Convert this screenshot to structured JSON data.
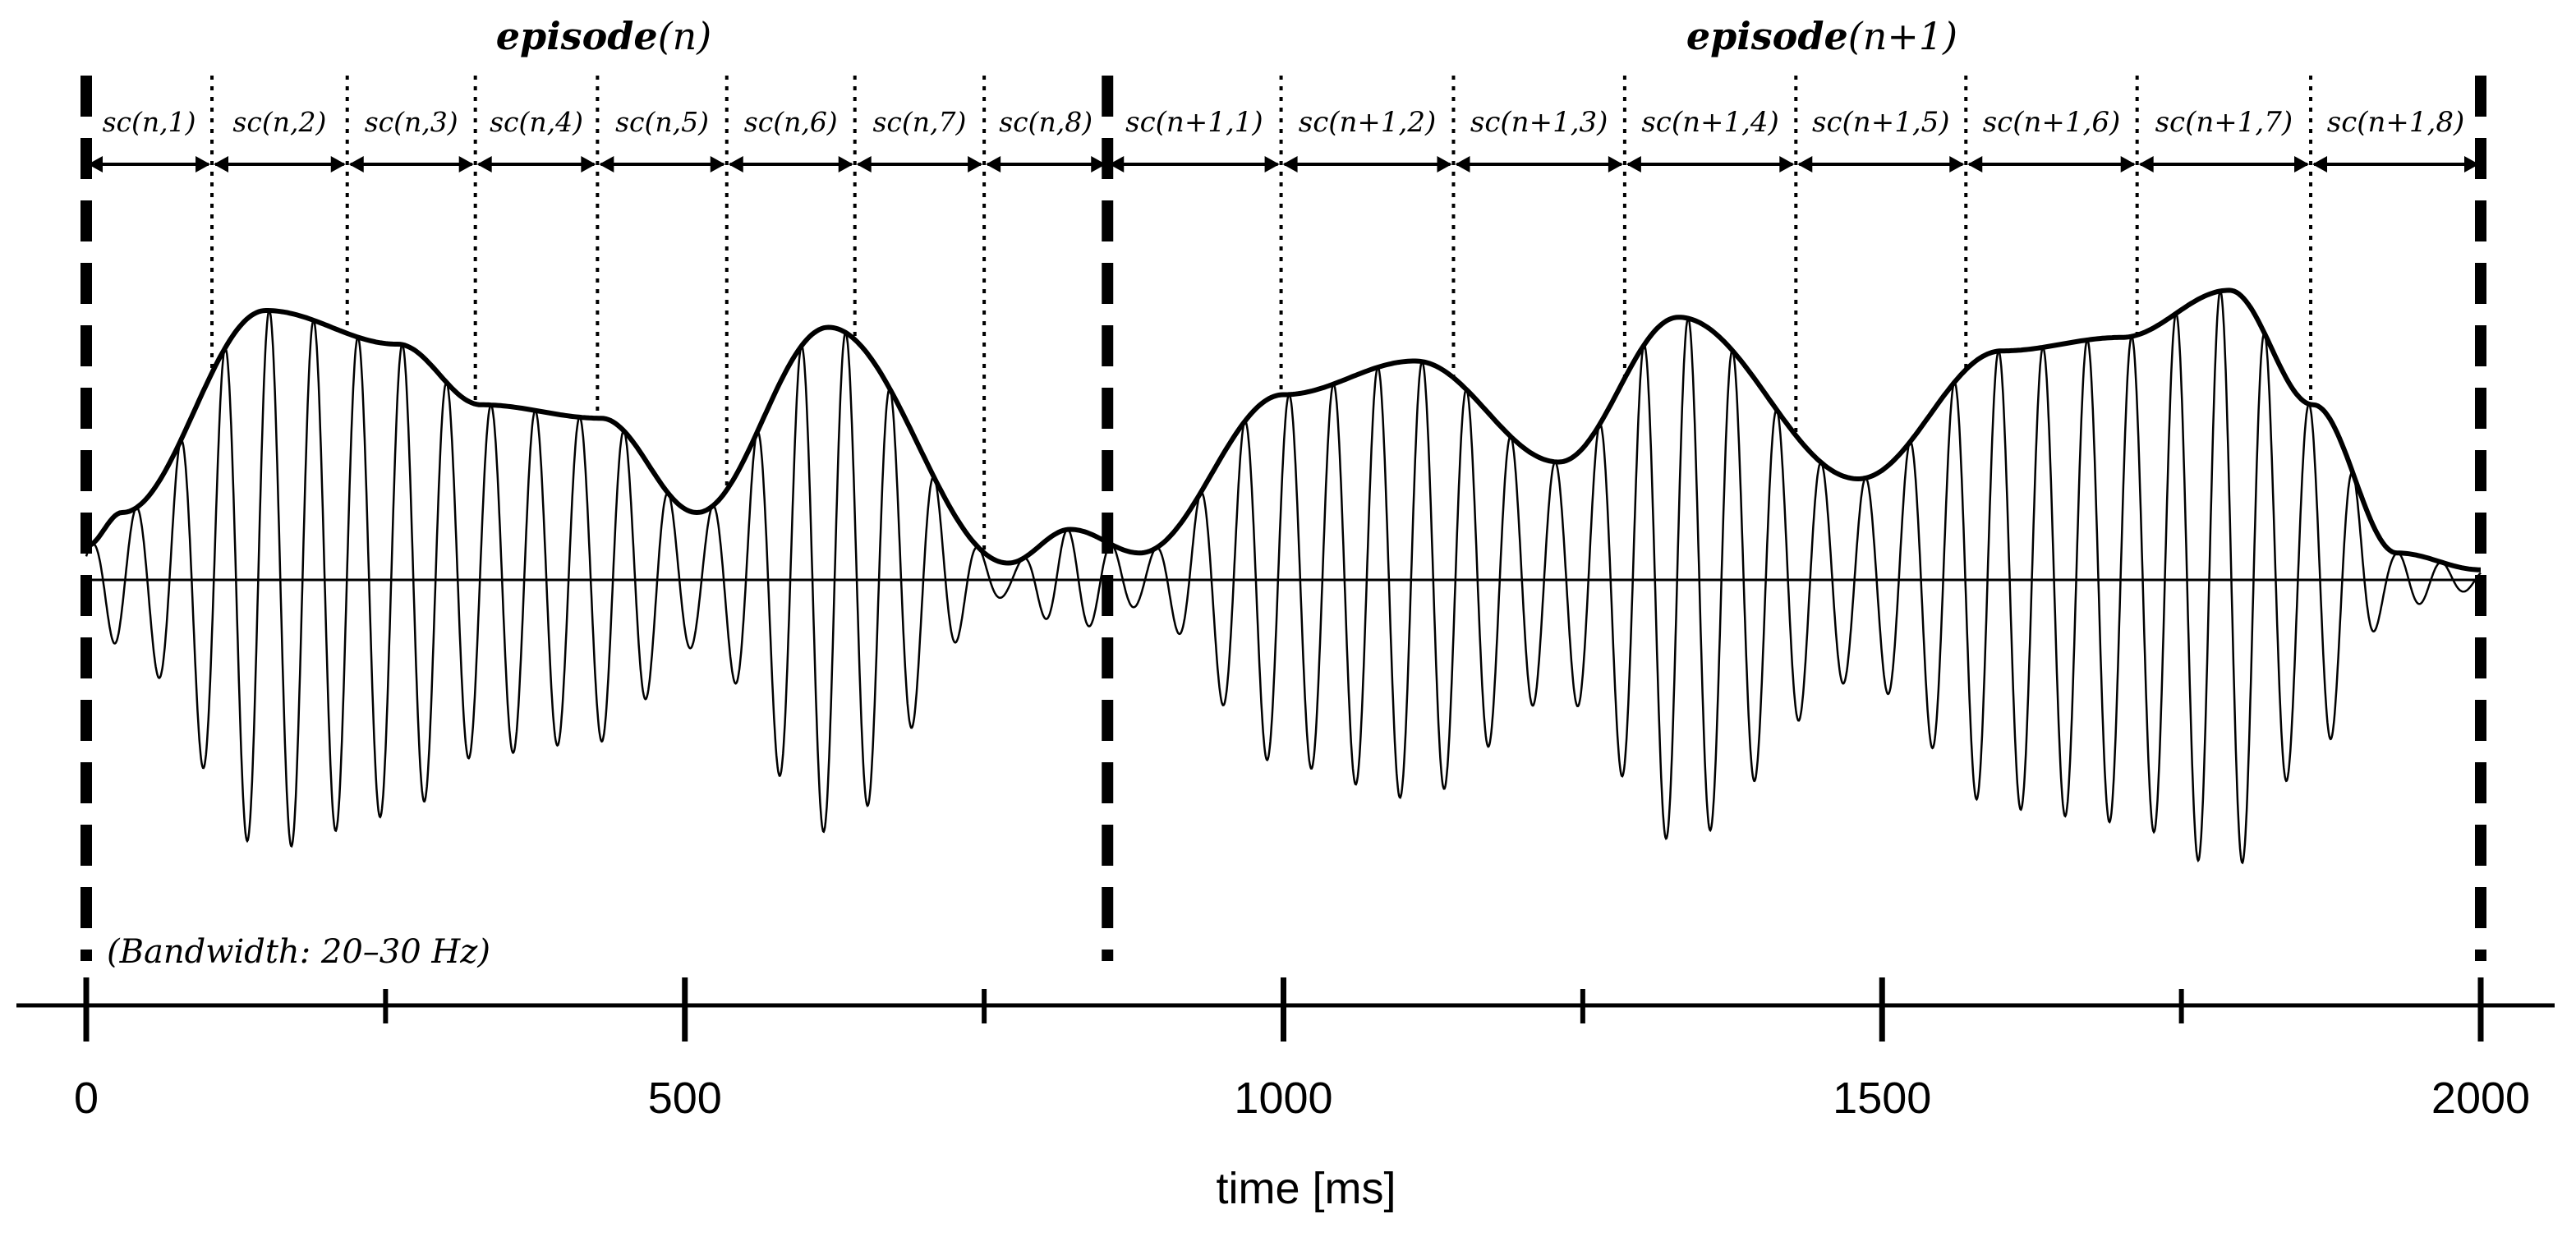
{
  "episodes": [
    {
      "bold": "episode",
      "rest": "(n)"
    },
    {
      "bold": "episode",
      "rest": "(n+1)"
    }
  ],
  "subcycles": [
    {
      "label": "sc(n,1)",
      "start": 0,
      "end": 105
    },
    {
      "label": "sc(n,2)",
      "start": 105,
      "end": 218
    },
    {
      "label": "sc(n,3)",
      "start": 218,
      "end": 325
    },
    {
      "label": "sc(n,4)",
      "start": 325,
      "end": 427
    },
    {
      "label": "sc(n,5)",
      "start": 427,
      "end": 535
    },
    {
      "label": "sc(n,6)",
      "start": 535,
      "end": 642
    },
    {
      "label": "sc(n,7)",
      "start": 642,
      "end": 750
    },
    {
      "label": "sc(n,8)",
      "start": 750,
      "end": 853
    },
    {
      "label": "sc(n+1,1)",
      "start": 853,
      "end": 998
    },
    {
      "label": "sc(n+1,2)",
      "start": 998,
      "end": 1142
    },
    {
      "label": "sc(n+1,3)",
      "start": 1142,
      "end": 1285
    },
    {
      "label": "sc(n+1,4)",
      "start": 1285,
      "end": 1428
    },
    {
      "label": "sc(n+1,5)",
      "start": 1428,
      "end": 1570
    },
    {
      "label": "sc(n+1,6)",
      "start": 1570,
      "end": 1713
    },
    {
      "label": "sc(n+1,7)",
      "start": 1713,
      "end": 1858
    },
    {
      "label": "sc(n+1,8)",
      "start": 1858,
      "end": 2000
    }
  ],
  "episode_boundaries_ms": [
    0,
    853,
    2000
  ],
  "bandwidth_label": "(Bandwidth: 20–30 Hz)",
  "axis": {
    "xlabel": "time [ms]",
    "tick_labels": [
      "0",
      "500",
      "1000",
      "1500",
      "2000"
    ],
    "major_ticks_ms": [
      0,
      500,
      1000,
      1500,
      2000
    ],
    "minor_ticks_ms": [
      250,
      750,
      1250,
      1750
    ],
    "range_ms": [
      0,
      2000
    ]
  },
  "envelope_ms": [
    0,
    30,
    150,
    260,
    330,
    430,
    510,
    620,
    770,
    822,
    880,
    1000,
    1110,
    1230,
    1330,
    1480,
    1600,
    1700,
    1790,
    1860,
    1930,
    2000
  ],
  "envelope_amp": [
    0.1,
    0.2,
    0.8,
    0.7,
    0.52,
    0.48,
    0.2,
    0.75,
    0.05,
    0.15,
    0.08,
    0.55,
    0.65,
    0.35,
    0.78,
    0.3,
    0.68,
    0.72,
    0.86,
    0.52,
    0.08,
    0.03
  ],
  "oscillation_freq_hz": 27,
  "colors": {
    "ink": "#000000",
    "background": "#ffffff"
  }
}
